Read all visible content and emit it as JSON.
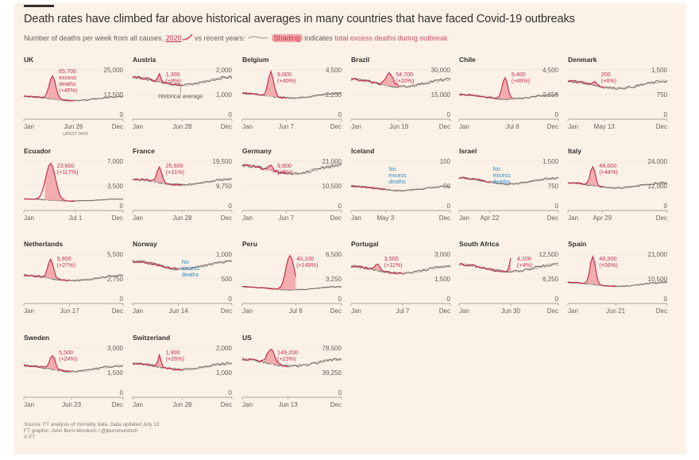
{
  "header": {
    "title": "Death rates have climbed far above historical averages in many countries that have faced Covid-19 outbreaks",
    "subtitle_a": "Number of deaths per week from all causes, ",
    "subtitle_2020": "2020",
    "subtitle_b": " vs recent years: ",
    "subtitle_shading": "Shading",
    "subtitle_c": " indicates ",
    "subtitle_excess": "total excess deaths during outbreak"
  },
  "footer": {
    "source": "Source: FT analysis of mortality data. Data updated July 13",
    "graphic": "FT graphic: John Burn-Murdoch / @jburnmurdoch",
    "copyright": "© FT"
  },
  "colors": {
    "background": "#fbf1e7",
    "line_2020": "#c8314f",
    "shading": "#f3a5a9",
    "historical": "#a9a39e",
    "no_excess": "#2e8fc4",
    "axis": "#66605c"
  },
  "chart_data": {
    "type": "line",
    "x_axis": {
      "start_label": "Jan",
      "end_label": "Dec"
    },
    "annotations": {
      "uk_latest": "LATEST DATA",
      "austria_average": "Historical average"
    },
    "panels": [
      {
        "name": "UK",
        "y_max": 25000,
        "y_max_label": "25,000",
        "y_mid_label": "12,500",
        "latest_label": "Jun 26",
        "latest_week": 26,
        "baseline": 10500,
        "peak": 22000,
        "peak_week": 15,
        "outbreak": [
          12,
          23
        ],
        "excess_lines": [
          "65,700",
          "excess",
          "deaths",
          "(+45%)"
        ]
      },
      {
        "name": "Austria",
        "y_max": 2000,
        "y_max_label": "2,000",
        "y_mid_label": "1,000",
        "latest_label": "Jun 28",
        "latest_week": 26,
        "baseline": 1550,
        "peak": 1800,
        "peak_week": 14,
        "outbreak": [
          12,
          18
        ],
        "excess_lines": [
          "1,300",
          "(+8%)"
        ]
      },
      {
        "name": "Belgium",
        "y_max": 4500,
        "y_max_label": "4,500",
        "y_mid_label": "2,250",
        "latest_label": "Jun 7",
        "latest_week": 23,
        "baseline": 2150,
        "peak": 4300,
        "peak_week": 15,
        "outbreak": [
          12,
          21
        ],
        "excess_lines": [
          "9,000",
          "(+40%)"
        ]
      },
      {
        "name": "Brazil",
        "y_max": 30000,
        "y_max_label": "30,000",
        "y_mid_label": "15,000",
        "latest_label": "Jun 19",
        "latest_week": 25,
        "baseline": 22000,
        "peak": 28000,
        "peak_week": 20,
        "outbreak": [
          14,
          26
        ],
        "excess_lines": [
          "54,700",
          "(+20%)"
        ]
      },
      {
        "name": "Chile",
        "y_max": 4500,
        "y_max_label": "4,500",
        "y_mid_label": "2,250",
        "latest_label": "Jul 8",
        "latest_week": 28,
        "baseline": 2050,
        "peak": 3800,
        "peak_week": 24,
        "outbreak": [
          19,
          28
        ],
        "excess_lines": [
          "9,400",
          "(+46%)"
        ]
      },
      {
        "name": "Denmark",
        "y_max": 1500,
        "y_max_label": "1,500",
        "y_mid_label": "750",
        "latest_label": "May 13",
        "latest_week": 19,
        "baseline": 1050,
        "peak": 1150,
        "peak_week": 14,
        "outbreak": [
          12,
          17
        ],
        "excess_lines": [
          "200",
          "(+6%)"
        ]
      },
      {
        "name": "Ecuador",
        "y_max": 7000,
        "y_max_label": "7,000",
        "y_mid_label": "3,500",
        "latest_label": "Jul 1",
        "latest_week": 27,
        "baseline": 1500,
        "peak": 6700,
        "peak_week": 14,
        "outbreak": [
          11,
          27
        ],
        "excess_lines": [
          "23,600",
          "(+117%)"
        ]
      },
      {
        "name": "France",
        "y_max": 19500,
        "y_max_label": "19,500",
        "y_mid_label": "9,750",
        "latest_label": "Jun 28",
        "latest_week": 26,
        "baseline": 11300,
        "peak": 17000,
        "peak_week": 14,
        "outbreak": [
          11,
          19
        ],
        "excess_lines": [
          "25,600",
          "(+31%)"
        ]
      },
      {
        "name": "Germany",
        "y_max": 21000,
        "y_max_label": "21,000",
        "y_mid_label": "10,500",
        "latest_label": "Jun 7",
        "latest_week": 23,
        "baseline": 17500,
        "peak": 19500,
        "peak_week": 15,
        "outbreak": [
          13,
          19
        ],
        "excess_lines": [
          "9,800",
          "(+5%)"
        ]
      },
      {
        "name": "Iceland",
        "y_max": 100,
        "y_max_label": "100",
        "y_mid_label": "50",
        "latest_label": "May 3",
        "latest_week": 18,
        "baseline": 45,
        "peak": null,
        "peak_week": null,
        "outbreak": null,
        "no_excess_lines": [
          "No",
          "excess",
          "deaths"
        ]
      },
      {
        "name": "Israel",
        "y_max": 1500,
        "y_max_label": "1,500",
        "y_mid_label": "750",
        "latest_label": "Apr 22",
        "latest_week": 16,
        "baseline": 900,
        "peak": null,
        "peak_week": null,
        "outbreak": null,
        "no_excess_lines": [
          "No",
          "excess",
          "deaths"
        ]
      },
      {
        "name": "Italy",
        "y_max": 24000,
        "y_max_label": "24,000",
        "y_mid_label": "12,000",
        "latest_label": "Apr 29",
        "latest_week": 18,
        "baseline": 12300,
        "peak": 21500,
        "peak_week": 13,
        "outbreak": [
          10,
          18
        ],
        "excess_lines": [
          "48,600",
          "(+44%)"
        ]
      },
      {
        "name": "Netherlands",
        "y_max": 5500,
        "y_max_label": "5,500",
        "y_mid_label": "2,750",
        "latest_label": "Jun 17",
        "latest_week": 24,
        "baseline": 2850,
        "peak": 5000,
        "peak_week": 14,
        "outbreak": [
          11,
          20
        ],
        "excess_lines": [
          "9,900",
          "(+27%)"
        ]
      },
      {
        "name": "Norway",
        "y_max": 1000,
        "y_max_label": "1,000",
        "y_mid_label": "500",
        "latest_label": "Jun 14",
        "latest_week": 24,
        "baseline": 780,
        "peak": null,
        "peak_week": null,
        "outbreak": null,
        "no_excess_lines": [
          "No",
          "excess",
          "deaths"
        ]
      },
      {
        "name": "Peru",
        "y_max": 6500,
        "y_max_label": "6,500",
        "y_mid_label": "3,250",
        "latest_label": "Jul 8",
        "latest_week": 28,
        "baseline": 2000,
        "peak": 6300,
        "peak_week": 25,
        "outbreak": [
          14,
          28
        ],
        "excess_lines": [
          "40,100",
          "(+149%)"
        ]
      },
      {
        "name": "Portugal",
        "y_max": 3000,
        "y_max_label": "3,000",
        "y_mid_label": "1,500",
        "latest_label": "Jul 7",
        "latest_week": 27,
        "baseline": 2050,
        "peak": 2450,
        "peak_week": 14,
        "outbreak": [
          12,
          19
        ],
        "excess_lines": [
          "3,500",
          "(+11%)"
        ]
      },
      {
        "name": "South Africa",
        "y_max": 12500,
        "y_max_label": "12,500",
        "y_mid_label": "6,250",
        "latest_label": "Jun 30",
        "latest_week": 27,
        "baseline": 9000,
        "peak": 11500,
        "peak_week": 27,
        "outbreak": [
          23,
          27
        ],
        "excess_lines": [
          "4,100",
          "(+4%)"
        ]
      },
      {
        "name": "Spain",
        "y_max": 21000,
        "y_max_label": "21,000",
        "y_mid_label": "10,500",
        "latest_label": "Jun 21",
        "latest_week": 25,
        "baseline": 8200,
        "peak": 20000,
        "peak_week": 13,
        "outbreak": [
          10,
          19
        ],
        "excess_lines": [
          "48,500",
          "(+56%)"
        ]
      },
      {
        "name": "Sweden",
        "y_max": 3000,
        "y_max_label": "3,000",
        "y_mid_label": "1,500",
        "latest_label": "Jun 23",
        "latest_week": 25,
        "baseline": 1750,
        "peak": 2550,
        "peak_week": 15,
        "outbreak": [
          12,
          21
        ],
        "excess_lines": [
          "5,500",
          "(+24%)"
        ]
      },
      {
        "name": "Switzerland",
        "y_max": 2000,
        "y_max_label": "2,000",
        "y_mid_label": "1,000",
        "latest_label": "Jun 28",
        "latest_week": 26,
        "baseline": 1250,
        "peak": 1750,
        "peak_week": 14,
        "outbreak": [
          12,
          17
        ],
        "excess_lines": [
          "1,900",
          "(+26%)"
        ]
      },
      {
        "name": "US",
        "y_max": 78500,
        "y_max_label": "78,500",
        "y_mid_label": "39,250",
        "latest_label": "Jun 13",
        "latest_week": 24,
        "baseline": 55000,
        "peak": 77000,
        "peak_week": 15,
        "outbreak": [
          12,
          24
        ],
        "excess_lines": [
          "149,200",
          "(+23%)"
        ]
      }
    ]
  }
}
